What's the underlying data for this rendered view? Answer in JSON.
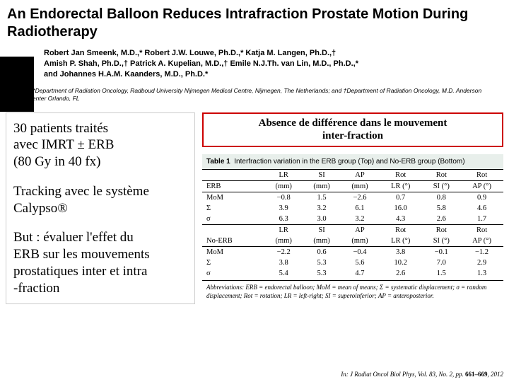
{
  "header": {
    "title": "An Endorectal Balloon Reduces Intrafraction Prostate Motion During Radiotherapy",
    "authors_line1": "Robert Jan Smeenk, M.D.,* Robert J.W. Louwe, Ph.D.,* Katja M. Langen, Ph.D.,†",
    "authors_line2": "Amish P. Shah, Ph.D.,† Patrick A. Kupelian, M.D.,† Emile N.J.Th. van Lin, M.D., Ph.D.,*",
    "authors_line3": "and Johannes H.A.M. Kaanders, M.D., Ph.D.*",
    "affil": "From the *Department of Radiation Oncology, Radboud University Nijmegen Medical Centre, Nijmegen, The Netherlands; and †Department of Radiation Oncology, M.D. Anderson Cancer Center Orlando, FL"
  },
  "left": {
    "p1a": "30 patients traités",
    "p1b": "avec IMRT ± ERB",
    "p1c": "(80 Gy in 40 fx)",
    "p2a": "Tracking avec le système",
    "p2b": "Calypso®",
    "p3a": "But : évaluer l'effet du",
    "p3b": "ERB sur les mouvements",
    "p3c": "prostatiques inter et intra",
    "p3d": "-fraction"
  },
  "right": {
    "highlight_a": "Absence de différence dans le mouvement",
    "highlight_b": "inter-fraction",
    "caption_bold": "Table 1",
    "caption_rest": "Interfraction variation in the ERB group (Top) and No-ERB group (Bottom)"
  },
  "table": {
    "head": {
      "blank": "",
      "c1": "LR",
      "c2": "SI",
      "c3": "AP",
      "c4": "Rot",
      "c5": "Rot",
      "c6": "Rot"
    },
    "sub1": {
      "label": "ERB",
      "c1": "(mm)",
      "c2": "(mm)",
      "c3": "(mm)",
      "c4": "LR (°)",
      "c5": "SI (°)",
      "c6": "AP (°)"
    },
    "r1": {
      "label": "MoM",
      "c1": "−0.8",
      "c2": "1.5",
      "c3": "−2.6",
      "c4": "0.7",
      "c5": "0.8",
      "c6": "0.9"
    },
    "r2": {
      "label": "Σ",
      "c1": "3.9",
      "c2": "3.2",
      "c3": "6.1",
      "c4": "16.0",
      "c5": "5.8",
      "c6": "4.6"
    },
    "r3": {
      "label": "σ",
      "c1": "6.3",
      "c2": "3.0",
      "c3": "3.2",
      "c4": "4.3",
      "c5": "2.6",
      "c6": "1.7"
    },
    "sub2": {
      "label": "No-ERB",
      "c1": "LR",
      "c2": "SI",
      "c3": "AP",
      "c4": "Rot",
      "c5": "Rot",
      "c6": "Rot"
    },
    "sub2u": {
      "label": "",
      "c1": "(mm)",
      "c2": "(mm)",
      "c3": "(mm)",
      "c4": "LR (°)",
      "c5": "SI (°)",
      "c6": "AP (°)"
    },
    "r4": {
      "label": "MoM",
      "c1": "−2.2",
      "c2": "0.6",
      "c3": "−0.4",
      "c4": "3.8",
      "c5": "−0.1",
      "c6": "−1.2"
    },
    "r5": {
      "label": "Σ",
      "c1": "3.8",
      "c2": "5.3",
      "c3": "5.6",
      "c4": "10.2",
      "c5": "7.0",
      "c6": "2.9"
    },
    "r6": {
      "label": "σ",
      "c1": "5.4",
      "c2": "5.3",
      "c3": "4.7",
      "c4": "2.6",
      "c5": "1.5",
      "c6": "1.3"
    }
  },
  "abbrev": "Abbreviations: ERB = endorectal balloon; MoM = mean of means; Σ = systematic displacement; σ = random displacement; Rot = rotation; LR = left-right; SI = superoinferior; AP = anteroposterior.",
  "citation": {
    "prefix": "In: J Radiat Oncol Biol Phys, Vol. 83, No. 2, pp. ",
    "pages": "661–669",
    "year": ", 2012"
  }
}
